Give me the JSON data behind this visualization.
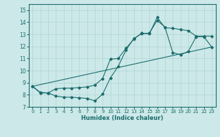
{
  "title": "",
  "xlabel": "Humidex (Indice chaleur)",
  "bg_color": "#cce8e8",
  "grid_color": "#b0d4d4",
  "line_color": "#1a6b6b",
  "spine_color": "#1a6b6b",
  "xlim": [
    -0.5,
    23.5
  ],
  "ylim": [
    7,
    15.5
  ],
  "yticks": [
    7,
    8,
    9,
    10,
    11,
    12,
    13,
    14,
    15
  ],
  "xticks": [
    0,
    1,
    2,
    3,
    4,
    5,
    6,
    7,
    8,
    9,
    10,
    11,
    12,
    13,
    14,
    15,
    16,
    17,
    18,
    19,
    20,
    21,
    22,
    23
  ],
  "line1_x": [
    0,
    1,
    2,
    3,
    4,
    5,
    6,
    7,
    8,
    9,
    10,
    11,
    12,
    13,
    14,
    15,
    16,
    17,
    18,
    19,
    20,
    21,
    22,
    23
  ],
  "line1_y": [
    8.7,
    8.15,
    8.15,
    7.9,
    7.8,
    7.8,
    7.75,
    7.7,
    7.5,
    8.05,
    9.4,
    10.35,
    11.7,
    12.65,
    13.05,
    13.1,
    14.15,
    13.6,
    11.5,
    11.3,
    11.6,
    12.8,
    12.8,
    11.95
  ],
  "line2_x": [
    0,
    1,
    2,
    3,
    4,
    5,
    6,
    7,
    8,
    9,
    10,
    11,
    12,
    13,
    14,
    15,
    16,
    17,
    18,
    19,
    20,
    21,
    22,
    23
  ],
  "line2_y": [
    8.7,
    8.2,
    8.15,
    8.5,
    8.55,
    8.55,
    8.6,
    8.65,
    8.8,
    9.35,
    10.95,
    11.0,
    11.85,
    12.6,
    13.1,
    13.05,
    14.4,
    13.55,
    13.5,
    13.4,
    13.3,
    12.85,
    12.85,
    12.85
  ],
  "line3_x": [
    0,
    23
  ],
  "line3_y": [
    8.7,
    11.95
  ],
  "marker_size": 1.8,
  "line_width": 0.8,
  "tick_fontsize": 5.0,
  "xlabel_fontsize": 6.0
}
